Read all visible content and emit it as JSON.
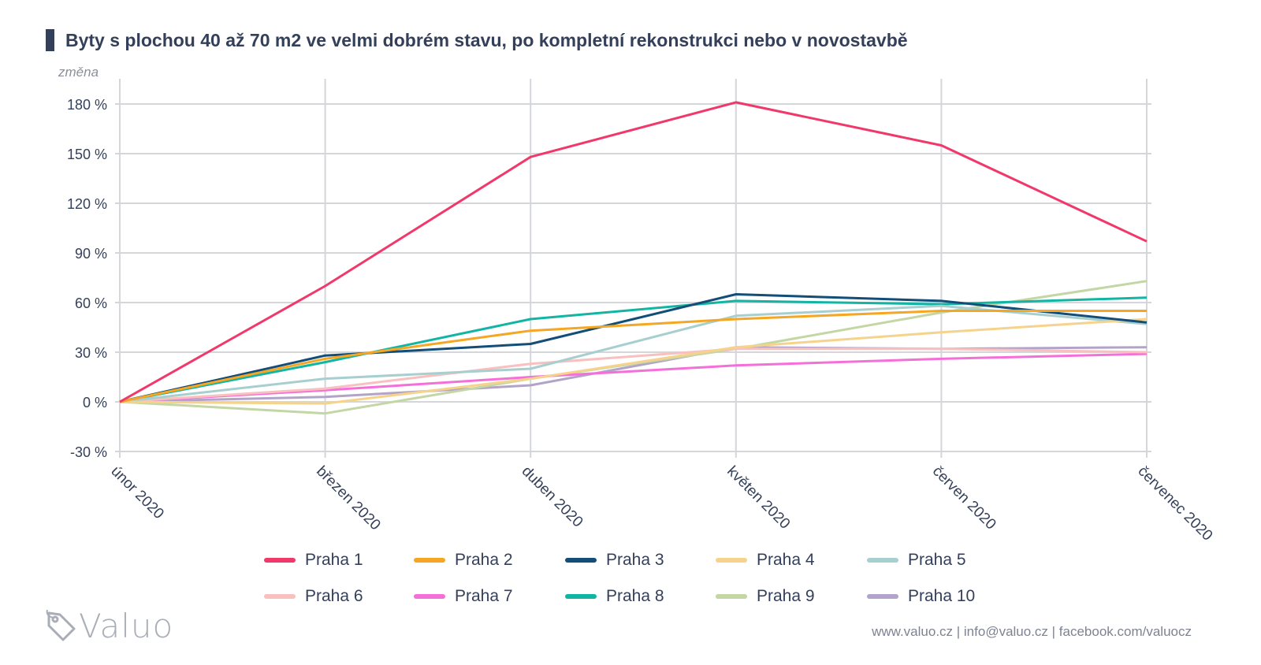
{
  "title": "Byty s plochou 40 až 70 m2 ve velmi dobrém stavu, po kompletní rekonstrukci nebo v novostavbě",
  "footer": "www.valuo.cz | info@valuo.cz | facebook.com/valuocz",
  "logo_text": "Valuo",
  "logo_icon": "price-tag-icon",
  "chart_data": {
    "type": "line",
    "ylabel": "změna",
    "xlabel": "",
    "ylim": [
      -30,
      180
    ],
    "y_unit": "%",
    "y_ticks": [
      -30,
      0,
      30,
      60,
      90,
      120,
      150,
      180
    ],
    "y_tick_labels": [
      "-30 %",
      "0 %",
      "30 %",
      "60 %",
      "90 %",
      "120 %",
      "150 %",
      "180 %"
    ],
    "categories": [
      "únor 2020",
      "březen 2020",
      "duben 2020",
      "květen 2020",
      "červen 2020",
      "červenec 2020"
    ],
    "grid": true,
    "legend_position": "bottom",
    "series": [
      {
        "name": "Praha 1",
        "color": "#f0386b",
        "values": [
          0,
          70,
          148,
          181,
          155,
          97
        ]
      },
      {
        "name": "Praha 2",
        "color": "#f5a623",
        "values": [
          0,
          26,
          43,
          50,
          55,
          55
        ]
      },
      {
        "name": "Praha 3",
        "color": "#124e78",
        "values": [
          0,
          28,
          35,
          65,
          61,
          48
        ]
      },
      {
        "name": "Praha 4",
        "color": "#f6d38d",
        "values": [
          0,
          -1,
          14,
          33,
          42,
          50
        ]
      },
      {
        "name": "Praha 5",
        "color": "#a8cfcf",
        "values": [
          0,
          14,
          20,
          52,
          58,
          47
        ]
      },
      {
        "name": "Praha 6",
        "color": "#f9c0c0",
        "values": [
          0,
          8,
          23,
          32,
          32,
          30
        ]
      },
      {
        "name": "Praha 7",
        "color": "#f56fd9",
        "values": [
          0,
          7,
          15,
          22,
          26,
          29
        ]
      },
      {
        "name": "Praha 8",
        "color": "#12b5a3",
        "values": [
          0,
          24,
          50,
          61,
          59,
          63
        ]
      },
      {
        "name": "Praha 9",
        "color": "#c3d6a4",
        "values": [
          0,
          -7,
          14,
          32,
          54,
          73
        ]
      },
      {
        "name": "Praha 10",
        "color": "#b2a4c9",
        "values": [
          0,
          3,
          10,
          33,
          32,
          33
        ]
      }
    ]
  }
}
